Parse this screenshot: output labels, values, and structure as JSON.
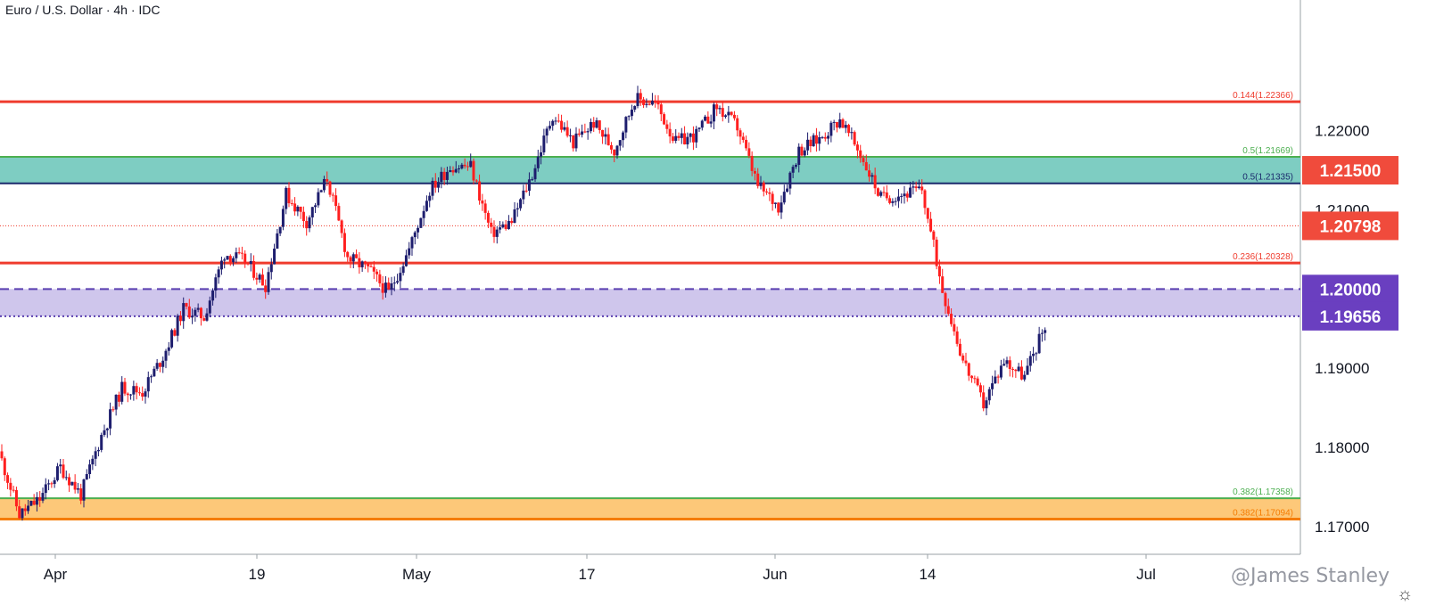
{
  "header": {
    "title": "Euro / U.S. Dollar · 4h · IDC"
  },
  "watermark": "@James Stanley",
  "colors": {
    "up": "#1e1e6e",
    "down": "#ff1f1f",
    "res_red": "#ef3b2d",
    "teal_zone": "#7ecdc2",
    "teal_line": "#3aa35a",
    "teal_lower_line": "#1a2a6c",
    "purple_zone": "#cfc6ec",
    "purple_line": "#5a3fb0",
    "orange_zone": "#fdc879",
    "orange_line": "#f57c00",
    "green_line": "#4caf50",
    "price_label_red": "#f04b3c",
    "price_label_purple": "#6a3fc0"
  },
  "chart_data": {
    "type": "candlestick",
    "instrument": "Euro / U.S. Dollar",
    "timeframe": "4h",
    "source": "IDC",
    "ylim": [
      1.1665,
      1.2365
    ],
    "x_ticks": [
      "Apr",
      "19",
      "May",
      "17",
      "Jun",
      "14",
      "Jul"
    ],
    "y_ticks": [
      "1.17000",
      "1.18000",
      "1.19000",
      "1.21000",
      "1.22000"
    ],
    "price_labels": [
      {
        "text": "1.21500",
        "value": 1.215,
        "color": "red"
      },
      {
        "text": "1.20798",
        "value": 1.20798,
        "color": "red"
      },
      {
        "text": "1.20000",
        "value": 1.2,
        "color": "purple"
      },
      {
        "text": "1.19656",
        "value": 1.19656,
        "color": "purple"
      }
    ],
    "levels": [
      {
        "label": "0.144(1.22366)",
        "value": 1.22366,
        "style": "red-solid"
      },
      {
        "label": "0.5(1.21669)",
        "value": 1.21669,
        "style": "green-solid"
      },
      {
        "label": "0.5(1.21335)",
        "value": 1.21335,
        "style": "navy-solid"
      },
      {
        "label": "",
        "value": 1.20798,
        "style": "red-dotted"
      },
      {
        "label": "0.236(1.20328)",
        "value": 1.20328,
        "style": "red-solid"
      },
      {
        "label": "",
        "value": 1.2,
        "style": "purple-dashed"
      },
      {
        "label": "",
        "value": 1.19656,
        "style": "purple-dotted"
      },
      {
        "label": "0.382(1.17358)",
        "value": 1.17358,
        "style": "green-solid"
      },
      {
        "label": "0.382(1.17094)",
        "value": 1.17094,
        "style": "orange-solid"
      }
    ],
    "zones": [
      {
        "from": 1.21335,
        "to": 1.21669,
        "fill": "teal"
      },
      {
        "from": 1.19656,
        "to": 1.2,
        "fill": "purple"
      },
      {
        "from": 1.17094,
        "to": 1.17358,
        "fill": "orange"
      }
    ],
    "price_path": [
      {
        "t": "Mar 29",
        "close": 1.1795
      },
      {
        "t": "Mar 31",
        "close": 1.1715
      },
      {
        "t": "Apr 1",
        "close": 1.1735
      },
      {
        "t": "Apr 2",
        "close": 1.1775
      },
      {
        "t": "Apr 5",
        "close": 1.174
      },
      {
        "t": "Apr 6",
        "close": 1.1815
      },
      {
        "t": "Apr 8",
        "close": 1.1875
      },
      {
        "t": "Apr 9",
        "close": 1.187
      },
      {
        "t": "Apr 12",
        "close": 1.1915
      },
      {
        "t": "Apr 14",
        "close": 1.1975
      },
      {
        "t": "Apr 16",
        "close": 1.1965
      },
      {
        "t": "Apr 19",
        "close": 1.2045
      },
      {
        "t": "Apr 20",
        "close": 1.2035
      },
      {
        "t": "Apr 23",
        "close": 1.2005
      },
      {
        "t": "Apr 26",
        "close": 1.212
      },
      {
        "t": "Apr 28",
        "close": 1.2085
      },
      {
        "t": "Apr 29",
        "close": 1.214
      },
      {
        "t": "Apr 30",
        "close": 1.204
      },
      {
        "t": "May 3",
        "close": 1.2025
      },
      {
        "t": "May 6",
        "close": 1.1995
      },
      {
        "t": "May 7",
        "close": 1.205
      },
      {
        "t": "May 10",
        "close": 1.2125
      },
      {
        "t": "May 11",
        "close": 1.2155
      },
      {
        "t": "May 12",
        "close": 1.2155
      },
      {
        "t": "May 13",
        "close": 1.207
      },
      {
        "t": "May 14",
        "close": 1.2085
      },
      {
        "t": "May 17",
        "close": 1.2145
      },
      {
        "t": "May 18",
        "close": 1.222
      },
      {
        "t": "May 19",
        "close": 1.2185
      },
      {
        "t": "May 20",
        "close": 1.221
      },
      {
        "t": "May 21",
        "close": 1.2175
      },
      {
        "t": "May 24",
        "close": 1.224
      },
      {
        "t": "May 25",
        "close": 1.2235
      },
      {
        "t": "May 26",
        "close": 1.2185
      },
      {
        "t": "May 28",
        "close": 1.2195
      },
      {
        "t": "Jun 1",
        "close": 1.223
      },
      {
        "t": "Jun 2",
        "close": 1.2205
      },
      {
        "t": "Jun 3",
        "close": 1.213
      },
      {
        "t": "Jun 4",
        "close": 1.2105
      },
      {
        "t": "Jun 7",
        "close": 1.2175
      },
      {
        "t": "Jun 9",
        "close": 1.219
      },
      {
        "t": "Jun 10",
        "close": 1.2215
      },
      {
        "t": "Jun 11",
        "close": 1.217
      },
      {
        "t": "Jun 14",
        "close": 1.2115
      },
      {
        "t": "Jun 15",
        "close": 1.212
      },
      {
        "t": "Jun 16",
        "close": 1.2125
      },
      {
        "t": "Jun 17",
        "close": 1.2
      },
      {
        "t": "Jun 18",
        "close": 1.191
      },
      {
        "t": "Jun 20",
        "close": 1.1855
      },
      {
        "t": "Jun 21",
        "close": 1.191
      },
      {
        "t": "Jun 22",
        "close": 1.189
      },
      {
        "t": "Jun 23",
        "close": 1.1955
      }
    ]
  }
}
